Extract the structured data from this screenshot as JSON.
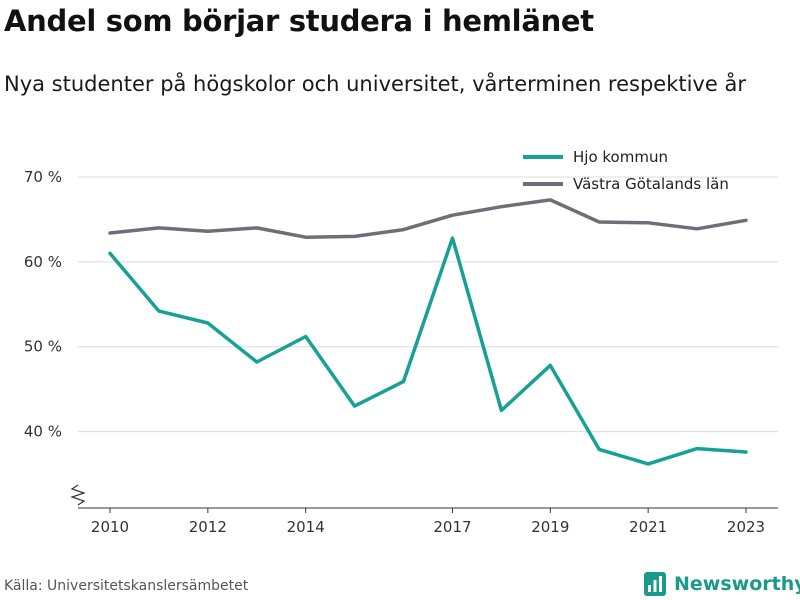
{
  "title": "Andel som börjar studera i hemlänet",
  "subtitle": "Nya studenter på högskolor och universitet, vårterminen respektive år",
  "source": "Källa: Universitetskanslersämbetet",
  "brand": {
    "name": "Newsworthy",
    "color": "#1a9a8a",
    "icon": "bar-chart-logo-icon"
  },
  "chart_data": {
    "type": "line",
    "title": "",
    "xlabel": "",
    "ylabel": "",
    "x": [
      2010,
      2011,
      2012,
      2013,
      2014,
      2015,
      2016,
      2017,
      2018,
      2019,
      2020,
      2021,
      2022,
      2023
    ],
    "xticks": [
      2010,
      2012,
      2014,
      2017,
      2019,
      2021,
      2023
    ],
    "xtick_labels": [
      "2010",
      "2012",
      "2014",
      "2017",
      "2019",
      "2021",
      "2023"
    ],
    "yticks": [
      40,
      50,
      60,
      70
    ],
    "ytick_labels": [
      "40 %",
      "50 %",
      "60 %",
      "70 %"
    ],
    "ylim": [
      31,
      72
    ],
    "y_axis_break": true,
    "grid": true,
    "legend_position": "top-right",
    "series": [
      {
        "name": "Hjo kommun",
        "color": "#17a194",
        "values": [
          61.0,
          54.2,
          52.8,
          48.2,
          51.2,
          43.0,
          45.9,
          62.8,
          42.5,
          47.8,
          37.9,
          36.2,
          38.0,
          37.6
        ]
      },
      {
        "name": "Västra Götalands län",
        "color": "#6e6e78",
        "values": [
          63.4,
          64.0,
          63.6,
          64.0,
          62.9,
          63.0,
          63.8,
          65.5,
          66.5,
          67.3,
          64.7,
          64.6,
          63.9,
          64.9
        ]
      }
    ]
  }
}
